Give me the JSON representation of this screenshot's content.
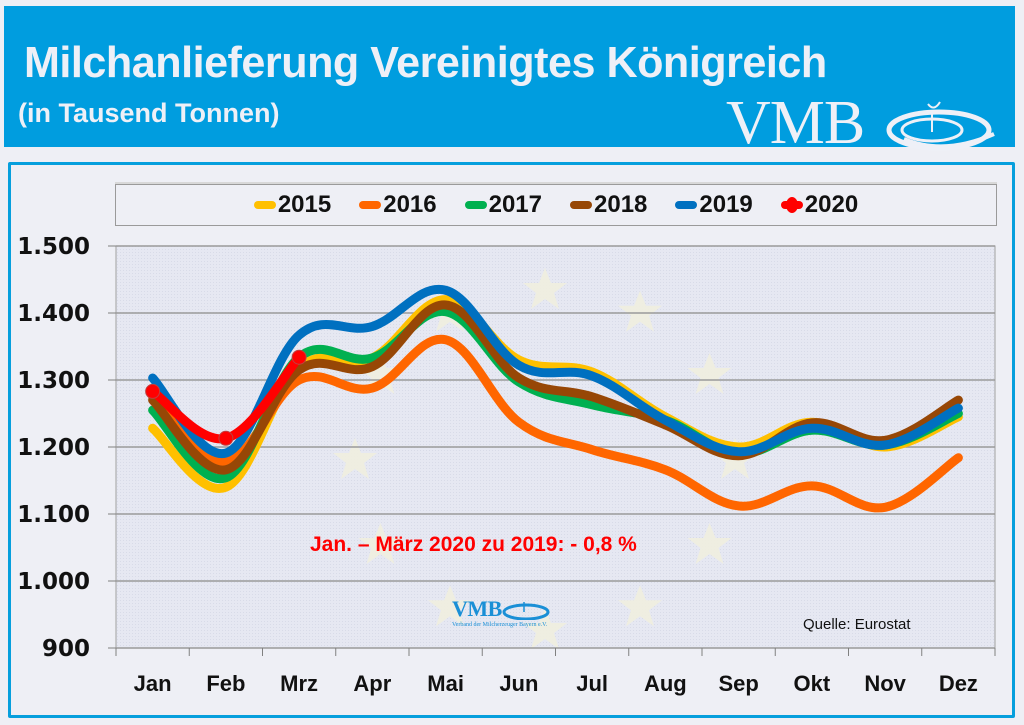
{
  "header": {
    "title": "Milchanlieferung Vereinigtes Königreich",
    "subtitle": "(in Tausend Tonnen)",
    "logo_text": "VMB"
  },
  "annotation": "Jan. – März 2020 zu 2019: - 0,8 %",
  "source": "Quelle:  Eurostat",
  "small_logo": {
    "text": "VMB",
    "subtext": "Verband der Milcherzeuger Bayern e.V."
  },
  "chart_data": {
    "type": "line",
    "title": "Milchanlieferung Vereinigtes Königreich",
    "subtitle": "(in Tausend Tonnen)",
    "xlabel": "",
    "ylabel": "",
    "ylim": [
      900,
      1500
    ],
    "yticks": [
      900,
      1000,
      1100,
      1200,
      1300,
      1400,
      1500
    ],
    "ytick_labels": [
      "900",
      "1.000",
      "1.100",
      "1.200",
      "1.300",
      "1.400",
      "1.500"
    ],
    "grid": true,
    "legend_position": "top",
    "categories": [
      "Jan",
      "Feb",
      "Mrz",
      "Apr",
      "Mai",
      "Jun",
      "Jul",
      "Aug",
      "Sep",
      "Okt",
      "Nov",
      "Dez"
    ],
    "series": [
      {
        "name": "2015",
        "color": "#ffc000",
        "values": [
          1228,
          1140,
          1318,
          1333,
          1420,
          1330,
          1312,
          1245,
          1200,
          1237,
          1200,
          1245
        ]
      },
      {
        "name": "2016",
        "color": "#ff6600",
        "values": [
          1275,
          1178,
          1300,
          1288,
          1360,
          1237,
          1196,
          1166,
          1112,
          1142,
          1110,
          1184
        ]
      },
      {
        "name": "2017",
        "color": "#00b050",
        "values": [
          1255,
          1154,
          1334,
          1333,
          1402,
          1297,
          1263,
          1240,
          1190,
          1225,
          1203,
          1250
        ]
      },
      {
        "name": "2018",
        "color": "#974706",
        "values": [
          1270,
          1166,
          1315,
          1320,
          1412,
          1303,
          1275,
          1233,
          1187,
          1236,
          1210,
          1270
        ]
      },
      {
        "name": "2019",
        "color": "#0070c0",
        "values": [
          1303,
          1191,
          1367,
          1380,
          1434,
          1322,
          1306,
          1240,
          1193,
          1228,
          1203,
          1258
        ]
      },
      {
        "name": "2020",
        "color": "#ff0000",
        "markers": true,
        "values": [
          1283,
          1213,
          1334
        ]
      }
    ],
    "annotations": [
      "Jan. – März 2020 zu 2019: - 0,8 %",
      "Quelle:  Eurostat"
    ]
  }
}
